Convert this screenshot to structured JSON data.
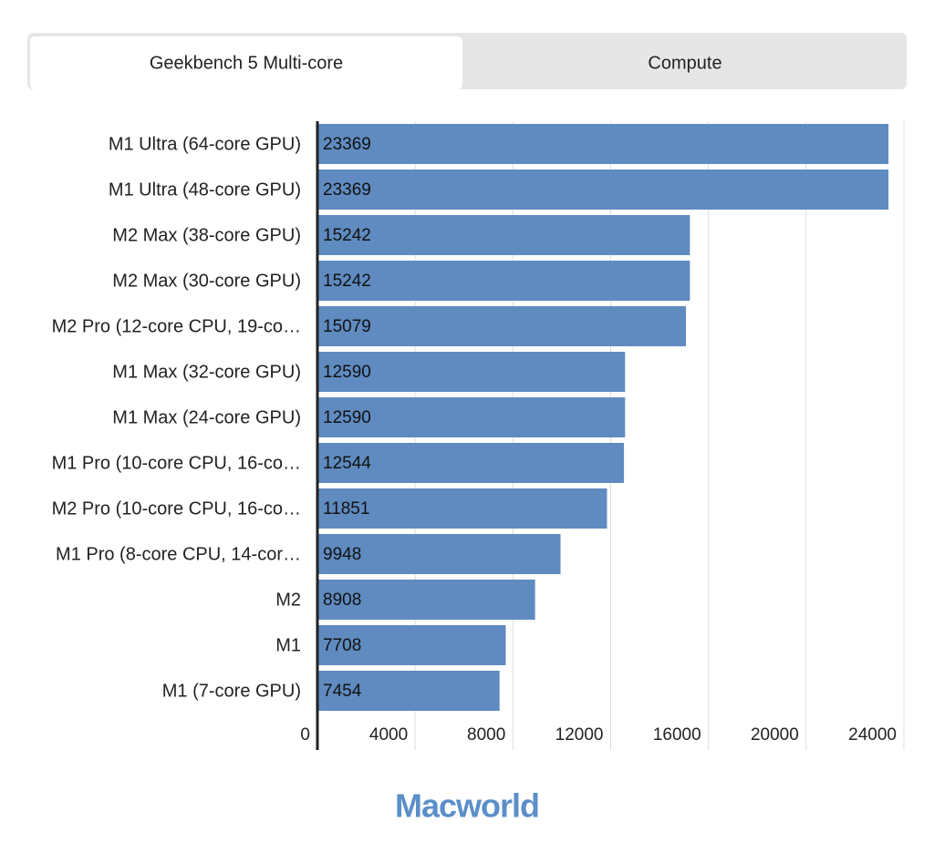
{
  "tabs": [
    "Geekbench 5 Multi-core",
    "Compute"
  ],
  "chart_data": {
    "type": "bar",
    "orientation": "horizontal",
    "categories": [
      "M1 Ultra (64-core GPU)",
      "M1 Ultra (48-core GPU)",
      "M2 Max (38-core GPU)",
      "M2 Max (30-core GPU)",
      "M2 Pro (12-core CPU, 19-co…",
      "M1 Max (32-core GPU)",
      "M1 Max (24-core GPU)",
      "M1 Pro (10-core CPU, 16-co…",
      "M2 Pro (10-core CPU, 16-co…",
      "M1 Pro (8-core CPU, 14-cor…",
      "M2",
      "M1",
      "M1 (7-core GPU)"
    ],
    "values": [
      23369,
      23369,
      15242,
      15242,
      15079,
      12590,
      12590,
      12544,
      11851,
      9948,
      8908,
      7708,
      7454
    ],
    "color": "#5f8bc0",
    "xlim": [
      0,
      24000
    ],
    "xticks": [
      0,
      4000,
      8000,
      12000,
      16000,
      20000,
      24000
    ],
    "grid": true
  },
  "footer": {
    "logo": "Macworld"
  }
}
